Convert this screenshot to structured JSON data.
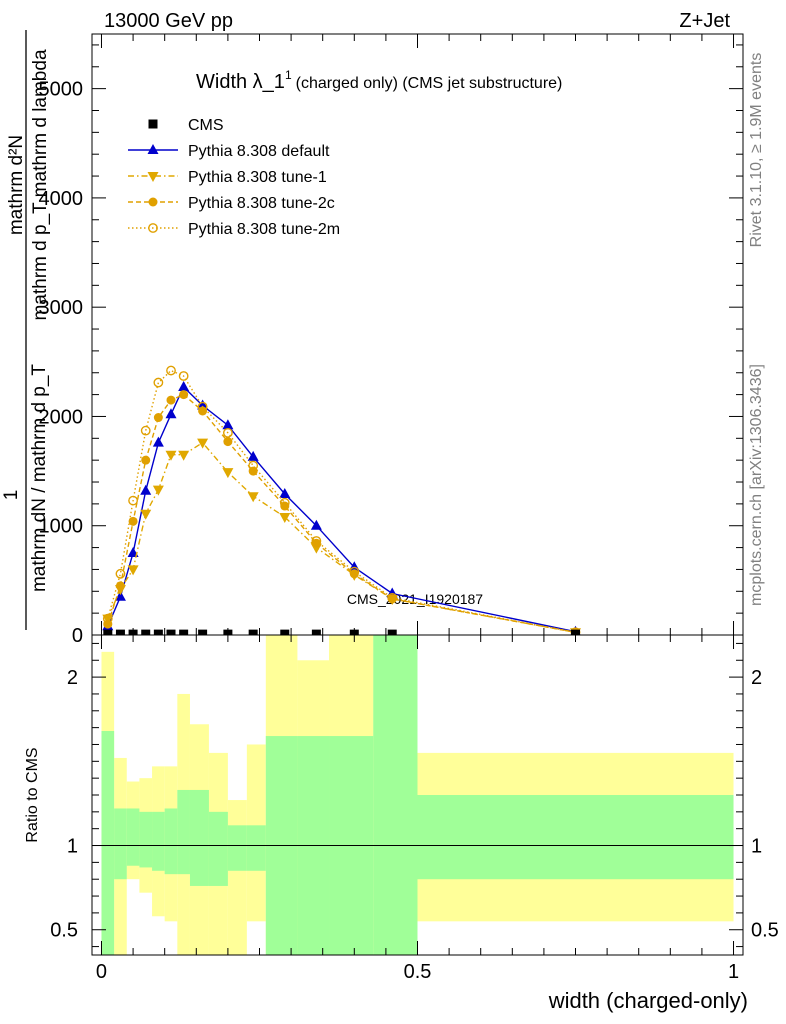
{
  "header": {
    "energy": "13000 GeV pp",
    "process": "Z+Jet"
  },
  "side": {
    "rivet": "Rivet 3.1.10, ≥ 1.9M events",
    "mcplots": "mcplots.cern.ch [arXiv:1306.3436]"
  },
  "watermark": "CMS_2021_I1920187",
  "chart_data": [
    {
      "type": "line",
      "title": "Width λ_1",
      "title_sup": "1",
      "subtitle": "(charged only) (CMS jet substructure)",
      "ylabel_top": "mathrm d²N",
      "ylabel_top_sub": "mathrm d p_T mathrm d lambda",
      "ylabel_bot": "mathrm dN / mathrm d p_T",
      "ylabel_one": "1",
      "xlim": [
        -0.015,
        1.015
      ],
      "ylim": [
        0,
        5500
      ],
      "yticks": [
        0,
        1000,
        2000,
        3000,
        4000,
        5000
      ],
      "legend_position": "top-left",
      "series": [
        {
          "name": "CMS",
          "style": "data",
          "color": "#000000",
          "x": [
            0.01,
            0.03,
            0.05,
            0.07,
            0.09,
            0.11,
            0.13,
            0.16,
            0.2,
            0.24,
            0.29,
            0.34,
            0.4,
            0.46,
            0.75
          ],
          "y": [
            8,
            8,
            8,
            8,
            8,
            8,
            8,
            8,
            8,
            8,
            8,
            8,
            8,
            8,
            8
          ]
        },
        {
          "name": "Pythia 8.308 default",
          "style": "solid",
          "marker": "triangle-up",
          "color": "#0000cc",
          "x": [
            0.01,
            0.03,
            0.05,
            0.07,
            0.09,
            0.11,
            0.13,
            0.16,
            0.2,
            0.24,
            0.29,
            0.34,
            0.4,
            0.46,
            0.75
          ],
          "y": [
            80,
            350,
            750,
            1320,
            1760,
            2020,
            2270,
            2100,
            1920,
            1630,
            1290,
            1000,
            620,
            380,
            30
          ]
        },
        {
          "name": "Pythia 8.308 tune-1",
          "style": "dashdot",
          "marker": "triangle-down",
          "color": "#e0a800",
          "x": [
            0.01,
            0.03,
            0.05,
            0.07,
            0.09,
            0.11,
            0.13,
            0.16,
            0.2,
            0.24,
            0.29,
            0.34,
            0.4,
            0.46,
            0.75
          ],
          "y": [
            150,
            420,
            600,
            1110,
            1330,
            1650,
            1650,
            1760,
            1490,
            1270,
            1080,
            800,
            550,
            330,
            25
          ]
        },
        {
          "name": "Pythia 8.308 tune-2c",
          "style": "dashed",
          "marker": "circle",
          "color": "#e0a000",
          "x": [
            0.01,
            0.03,
            0.05,
            0.07,
            0.09,
            0.11,
            0.13,
            0.16,
            0.2,
            0.24,
            0.29,
            0.34,
            0.4,
            0.46,
            0.75
          ],
          "y": [
            100,
            450,
            1040,
            1600,
            1990,
            2150,
            2200,
            2050,
            1770,
            1500,
            1180,
            840,
            560,
            330,
            25
          ]
        },
        {
          "name": "Pythia 8.308 tune-2m",
          "style": "dotted",
          "marker": "circle-open",
          "color": "#e0a000",
          "x": [
            0.01,
            0.03,
            0.05,
            0.07,
            0.09,
            0.11,
            0.13,
            0.16,
            0.2,
            0.24,
            0.29,
            0.34,
            0.4,
            0.46,
            0.75
          ],
          "y": [
            150,
            560,
            1230,
            1870,
            2310,
            2420,
            2370,
            2090,
            1850,
            1550,
            1210,
            860,
            580,
            340,
            25
          ]
        }
      ]
    },
    {
      "type": "area",
      "ylabel": "Ratio to CMS",
      "xlabel": "width (charged-only)",
      "xlim": [
        -0.015,
        1.015
      ],
      "ylim": [
        0.35,
        2.25
      ],
      "yticks": [
        0.5,
        1,
        2
      ],
      "ytick_labels": [
        "0.5",
        "1",
        "2"
      ],
      "xticks": [
        0,
        0.5,
        1
      ],
      "xtick_labels": [
        "0",
        "0.5",
        "1"
      ],
      "reference": 1,
      "bins": [
        0,
        0.02,
        0.04,
        0.06,
        0.08,
        0.1,
        0.12,
        0.14,
        0.17,
        0.2,
        0.23,
        0.26,
        0.31,
        0.36,
        0.43,
        0.5,
        1.0
      ],
      "inner_band": {
        "color": "#a0ff98",
        "lo": [
          0.35,
          0.8,
          0.88,
          0.87,
          0.85,
          0.83,
          0.83,
          0.76,
          0.76,
          0.85,
          0.85,
          0.35,
          0.35,
          0.35,
          0.35,
          0.8
        ],
        "hi": [
          1.68,
          1.22,
          1.22,
          1.2,
          1.2,
          1.22,
          1.33,
          1.33,
          1.2,
          1.12,
          1.12,
          1.65,
          1.65,
          1.65,
          2.3,
          1.3
        ]
      },
      "outer_band": {
        "color": "#ffff99",
        "lo": [
          0.35,
          0.35,
          0.8,
          0.72,
          0.58,
          0.55,
          0.35,
          0.35,
          0.35,
          0.35,
          0.55,
          0.35,
          0.4,
          0.35,
          0.35,
          0.55
        ],
        "hi": [
          2.15,
          1.52,
          1.38,
          1.4,
          1.47,
          1.47,
          1.9,
          1.72,
          1.55,
          1.27,
          1.6,
          2.25,
          2.1,
          2.3,
          2.3,
          1.55
        ]
      }
    }
  ]
}
